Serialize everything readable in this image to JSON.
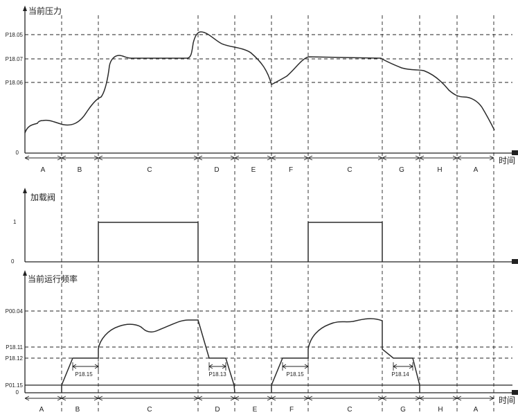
{
  "pressure_chart": {
    "title": "当前压力",
    "y_labels": [
      "P18.05",
      "P18.07",
      "P18.06"
    ],
    "zero": "0",
    "x_label": "时间",
    "phases": [
      "A",
      "B",
      "C",
      "D",
      "E",
      "F",
      "C",
      "G",
      "H",
      "A"
    ]
  },
  "valve_chart": {
    "title": "加载阀",
    "one": "1",
    "zero": "0"
  },
  "frequency_chart": {
    "title": "当前运行频率",
    "y_labels": [
      "P00.04",
      "P18.11",
      "P18.12",
      "P01.15"
    ],
    "zero": "0",
    "x_label": "时间",
    "phases": [
      "A",
      "B",
      "C",
      "D",
      "E",
      "F",
      "C",
      "G",
      "H",
      "A"
    ],
    "delay_params": [
      "P18.15",
      "P18.13",
      "P18.15",
      "P18.14"
    ]
  }
}
